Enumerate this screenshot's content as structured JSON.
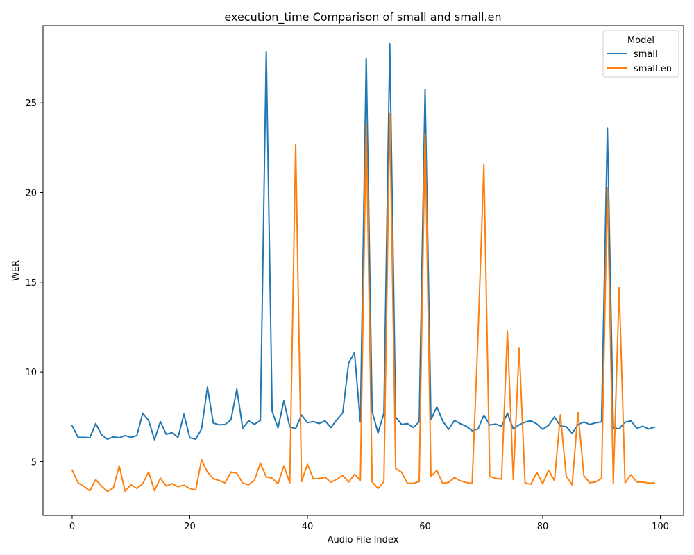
{
  "chart_data": {
    "type": "line",
    "title": "execution_time Comparison of small and small.en",
    "xlabel": "Audio File Index",
    "ylabel": "WER",
    "xlim": [
      -4.95,
      103.95
    ],
    "ylim": [
      2.0,
      29.3
    ],
    "xticks": [
      0,
      20,
      40,
      60,
      80,
      100
    ],
    "yticks": [
      5,
      10,
      15,
      20,
      25
    ],
    "grid": false,
    "legend": {
      "title": "Model",
      "position": "top-right"
    },
    "series": [
      {
        "name": "small",
        "color": "#1f77b4",
        "values": [
          7.0,
          6.35,
          6.35,
          6.33,
          7.12,
          6.5,
          6.25,
          6.38,
          6.33,
          6.45,
          6.35,
          6.45,
          7.7,
          7.3,
          6.22,
          7.23,
          6.52,
          6.62,
          6.35,
          7.64,
          6.33,
          6.25,
          6.82,
          9.15,
          7.15,
          7.05,
          7.07,
          7.33,
          9.04,
          6.86,
          7.28,
          7.08,
          7.29,
          27.85,
          7.8,
          6.88,
          8.4,
          6.93,
          6.84,
          7.6,
          7.17,
          7.23,
          7.12,
          7.27,
          6.9,
          7.33,
          7.72,
          10.49,
          11.08,
          7.2,
          27.5,
          7.8,
          6.6,
          7.7,
          28.3,
          7.48,
          7.07,
          7.12,
          6.9,
          7.22,
          25.74,
          7.33,
          8.06,
          7.26,
          6.8,
          7.3,
          7.11,
          6.97,
          6.72,
          6.82,
          7.59,
          7.04,
          7.09,
          6.97,
          7.7,
          6.82,
          7.05,
          7.2,
          7.28,
          7.1,
          6.8,
          7.02,
          7.49,
          6.98,
          6.95,
          6.58,
          7.06,
          7.21,
          7.07,
          7.16,
          7.22,
          23.6,
          6.88,
          6.83,
          7.2,
          7.27,
          6.86,
          6.97,
          6.82,
          6.92
        ]
      },
      {
        "name": "small.en",
        "color": "#ff7f0e",
        "values": [
          4.53,
          3.82,
          3.62,
          3.37,
          4.0,
          3.64,
          3.34,
          3.53,
          4.77,
          3.35,
          3.72,
          3.5,
          3.77,
          4.42,
          3.38,
          4.08,
          3.64,
          3.77,
          3.6,
          3.69,
          3.5,
          3.42,
          5.1,
          4.42,
          4.05,
          3.95,
          3.81,
          4.42,
          4.36,
          3.8,
          3.71,
          3.97,
          4.92,
          4.15,
          4.08,
          3.76,
          4.77,
          3.82,
          22.7,
          3.89,
          4.85,
          4.05,
          4.06,
          4.12,
          3.85,
          4.02,
          4.24,
          3.86,
          4.29,
          3.97,
          23.85,
          3.87,
          3.5,
          3.89,
          24.4,
          4.62,
          4.41,
          3.79,
          3.79,
          3.89,
          23.3,
          4.18,
          4.51,
          3.79,
          3.84,
          4.11,
          3.93,
          3.84,
          3.78,
          12.0,
          21.55,
          4.17,
          4.07,
          4.02,
          12.27,
          4.0,
          11.35,
          3.82,
          3.74,
          4.4,
          3.77,
          4.52,
          3.94,
          7.6,
          4.19,
          3.71,
          7.73,
          4.22,
          3.82,
          3.87,
          4.07,
          20.25,
          3.79,
          14.7,
          3.82,
          4.27,
          3.86,
          3.86,
          3.81,
          3.81
        ]
      }
    ]
  }
}
